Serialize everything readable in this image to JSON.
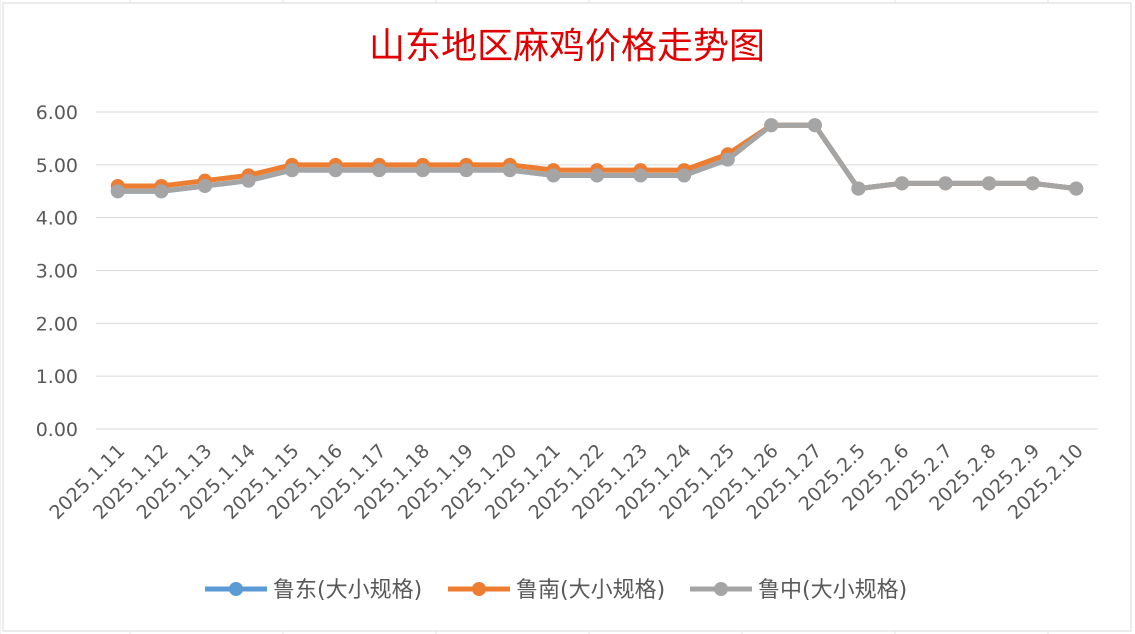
{
  "chart_data": {
    "type": "line",
    "title": "山东地区麻鸡价格走势图",
    "categories": [
      "2025.1.11",
      "2025.1.12",
      "2025.1.13",
      "2025.1.14",
      "2025.1.15",
      "2025.1.16",
      "2025.1.17",
      "2025.1.18",
      "2025.1.19",
      "2025.1.20",
      "2025.1.21",
      "2025.1.22",
      "2025.1.23",
      "2025.1.24",
      "2025.1.25",
      "2025.1.26",
      "2025.1.27",
      "2025.2.5",
      "2025.2.6",
      "2025.2.7",
      "2025.2.8",
      "2025.2.9",
      "2025.2.10"
    ],
    "series": [
      {
        "name": "鲁东(大小规格)",
        "color": "#5b9bd5",
        "values": [
          4.5,
          4.5,
          4.6,
          4.7,
          4.9,
          4.9,
          4.9,
          4.9,
          4.9,
          4.9,
          4.8,
          4.8,
          4.8,
          4.8,
          5.1,
          5.75,
          5.75,
          4.55,
          4.65,
          4.65,
          4.65,
          4.65,
          4.55
        ]
      },
      {
        "name": "鲁南(大小规格)",
        "color": "#ed7d31",
        "values": [
          4.6,
          4.6,
          4.7,
          4.8,
          5.0,
          5.0,
          5.0,
          5.0,
          5.0,
          5.0,
          4.9,
          4.9,
          4.9,
          4.9,
          5.2,
          5.75,
          5.75,
          4.55,
          4.65,
          4.65,
          4.65,
          4.65,
          4.55
        ]
      },
      {
        "name": "鲁中(大小规格)",
        "color": "#a5a5a5",
        "values": [
          4.5,
          4.5,
          4.6,
          4.7,
          4.9,
          4.9,
          4.9,
          4.9,
          4.9,
          4.9,
          4.8,
          4.8,
          4.8,
          4.8,
          5.1,
          5.75,
          5.75,
          4.55,
          4.65,
          4.65,
          4.65,
          4.65,
          4.55
        ]
      }
    ],
    "yticks": [
      "0.00",
      "1.00",
      "2.00",
      "3.00",
      "4.00",
      "5.00",
      "6.00"
    ],
    "ylim": [
      0,
      6
    ],
    "grid": true,
    "legend": "bottom",
    "title_color": "#e00000"
  }
}
